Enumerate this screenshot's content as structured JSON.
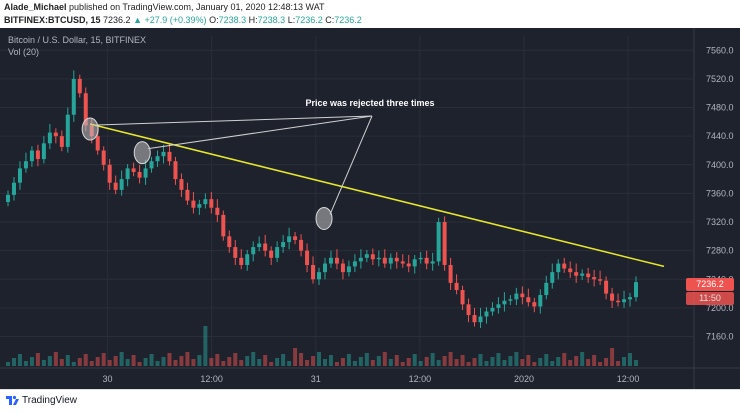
{
  "header": {
    "publisher": "Alade_Michael",
    "published_text": "published on TradingView.com, January 01, 2020 12:48:13 WAT",
    "symbol": "BITFINEX:BTCUSD, 15",
    "last": "7236.2",
    "change": "+27.9 (+0.39%)",
    "o_label": "O:",
    "o_val": "7238.3",
    "h_label": "H:",
    "h_val": "7238.3",
    "l_label": "L:",
    "l_val": "7236.2",
    "c_label": "C:",
    "c_val": "7236.2"
  },
  "legend": {
    "title": "Bitcoin / U.S. Dollar, 15, BITFINEX",
    "volume": "Vol (20)"
  },
  "tags": {
    "price": "7236.2",
    "countdown": "11:50"
  },
  "footer": {
    "brand": "TradingView"
  },
  "colors": {
    "up": "#26a69a",
    "down": "#ef5350",
    "trendline": "#e8e82a",
    "annotation": "#d0d0d0",
    "background": "#1e222d"
  },
  "chart_data": {
    "type": "candlestick",
    "title": "Bitcoin / U.S. Dollar, 15, BITFINEX",
    "ylim": [
      7130,
      7580
    ],
    "y_ticks": [
      "7560.0",
      "7520.0",
      "7480.0",
      "7440.0",
      "7400.0",
      "7360.0",
      "7320.0",
      "7280.0",
      "7240.0",
      "7200.0",
      "7160.0"
    ],
    "x_ticks": [
      "30",
      "12:00",
      "31",
      "12:00",
      "2020",
      "12:00"
    ],
    "annotation": "Price was rejected three times",
    "trendline": {
      "start": 7457,
      "end": 7258
    },
    "rejections": [
      {
        "x_frac": 0.055,
        "price": 7450
      },
      {
        "x_frac": 0.13,
        "price": 7417
      },
      {
        "x_frac": 0.392,
        "price": 7325
      }
    ],
    "closes": [
      7358,
      7375,
      7395,
      7405,
      7420,
      7408,
      7430,
      7445,
      7440,
      7425,
      7470,
      7520,
      7500,
      7455,
      7440,
      7420,
      7400,
      7375,
      7365,
      7380,
      7395,
      7390,
      7382,
      7395,
      7405,
      7412,
      7418,
      7405,
      7380,
      7365,
      7350,
      7340,
      7345,
      7352,
      7340,
      7330,
      7300,
      7285,
      7270,
      7260,
      7275,
      7285,
      7290,
      7280,
      7270,
      7285,
      7292,
      7300,
      7295,
      7280,
      7260,
      7240,
      7250,
      7262,
      7270,
      7262,
      7250,
      7258,
      7265,
      7270,
      7275,
      7268,
      7270,
      7262,
      7270,
      7265,
      7262,
      7258,
      7268,
      7270,
      7262,
      7265,
      7320,
      7260,
      7235,
      7225,
      7205,
      7190,
      7180,
      7188,
      7195,
      7200,
      7205,
      7210,
      7212,
      7220,
      7215,
      7208,
      7202,
      7218,
      7235,
      7250,
      7262,
      7255,
      7250,
      7245,
      7248,
      7243,
      7240,
      7238,
      7220,
      7210,
      7208,
      7212,
      7215,
      7236
    ]
  }
}
